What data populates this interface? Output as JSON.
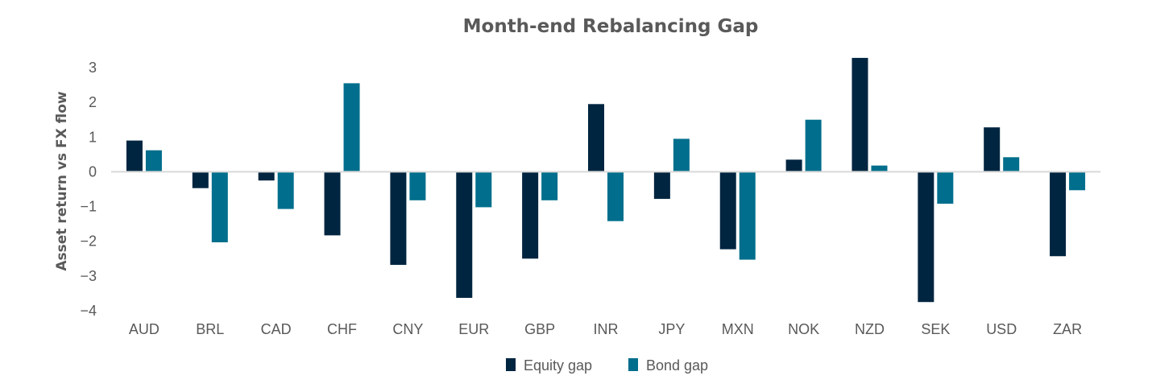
{
  "chart_data": {
    "type": "bar",
    "title": "Month-end Rebalancing Gap",
    "xlabel": "",
    "ylabel": "Asset return vs FX flow",
    "categories": [
      "AUD",
      "BRL",
      "CAD",
      "CHF",
      "CNY",
      "EUR",
      "GBP",
      "INR",
      "JPY",
      "MXN",
      "NOK",
      "NZD",
      "SEK",
      "USD",
      "ZAR"
    ],
    "series": [
      {
        "name": "Equity gap",
        "color": "#002540",
        "values": [
          0.9,
          -0.47,
          -0.25,
          -1.83,
          -2.68,
          -3.63,
          -2.5,
          1.95,
          -0.78,
          -2.23,
          0.35,
          3.28,
          -3.75,
          1.28,
          -2.43
        ]
      },
      {
        "name": "Bond gap",
        "color": "#006e8c",
        "values": [
          0.62,
          -2.03,
          -1.07,
          2.55,
          -0.82,
          -1.02,
          -0.82,
          -1.42,
          0.95,
          -2.53,
          1.5,
          0.18,
          -0.92,
          0.42,
          -0.53
        ]
      }
    ],
    "ylim": [
      -4,
      3
    ],
    "yticks": [
      3,
      2,
      1,
      0,
      -1,
      -2,
      -3,
      -4
    ],
    "ytick_labels": [
      "3",
      "2",
      "1",
      "0",
      "−1",
      "−2",
      "−3",
      "−4"
    ],
    "grid": false,
    "legend_position": "bottom-center",
    "axis_color": "#d9d9d9",
    "text_color": "#595959"
  }
}
